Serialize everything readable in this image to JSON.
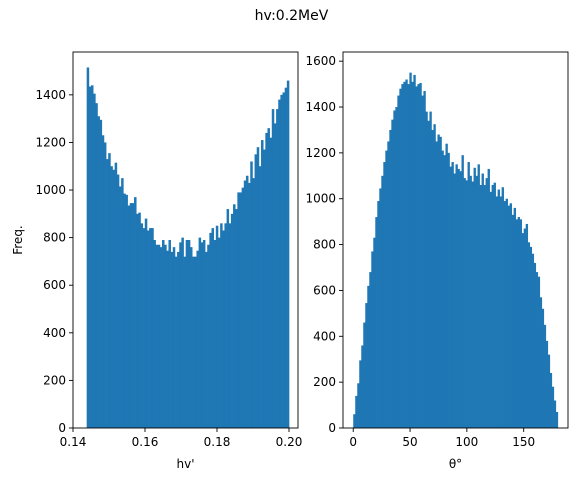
{
  "figure": {
    "title": "hv:0.2MeV"
  },
  "chart_data": [
    {
      "type": "bar",
      "subtype": "histogram",
      "title": "",
      "xlabel": "hv'",
      "ylabel": "Freq.",
      "xlim": [
        0.14,
        0.2025
      ],
      "ylim": [
        0,
        1580
      ],
      "xticks": [
        0.14,
        0.16,
        0.18,
        0.2
      ],
      "xtick_labels": [
        "0.14",
        "0.16",
        "0.18",
        "0.20"
      ],
      "yticks": [
        0,
        200,
        400,
        600,
        800,
        1000,
        1200,
        1400
      ],
      "ytick_labels": [
        "0",
        "200",
        "400",
        "600",
        "800",
        "1000",
        "1200",
        "1400"
      ],
      "bin_start": 0.1438,
      "bin_end": 0.2,
      "color": "#1f77b4",
      "values": [
        1515,
        1435,
        1440,
        1405,
        1365,
        1310,
        1295,
        1230,
        1200,
        1130,
        1155,
        1100,
        1085,
        1115,
        1065,
        1015,
        1050,
        985,
        980,
        935,
        945,
        945,
        970,
        900,
        905,
        860,
        840,
        880,
        830,
        840,
        840,
        790,
        770,
        770,
        760,
        790,
        770,
        745,
        790,
        740,
        760,
        720,
        740,
        780,
        800,
        720,
        790,
        790,
        760,
        720,
        720,
        745,
        800,
        780,
        790,
        740,
        770,
        820,
        840,
        790,
        850,
        800,
        860,
        830,
        860,
        920,
        860,
        900,
        940,
        920,
        990,
        990,
        1010,
        1040,
        1060,
        1030,
        1120,
        1050,
        1150,
        1180,
        1100,
        1210,
        1170,
        1240,
        1260,
        1220,
        1340,
        1280,
        1340,
        1380,
        1400,
        1410,
        1430,
        1460
      ]
    },
    {
      "type": "bar",
      "subtype": "histogram",
      "title": "",
      "xlabel": "θ°",
      "ylabel": "",
      "xlim": [
        -9,
        189
      ],
      "ylim": [
        0,
        1640
      ],
      "xticks": [
        0,
        50,
        100,
        150
      ],
      "xtick_labels": [
        "0",
        "50",
        "100",
        "150"
      ],
      "yticks": [
        0,
        200,
        400,
        600,
        800,
        1000,
        1200,
        1400,
        1600
      ],
      "ytick_labels": [
        "0",
        "200",
        "400",
        "600",
        "800",
        "1000",
        "1200",
        "1400",
        "1600"
      ],
      "bin_start": 0,
      "bin_end": 180,
      "color": "#1f77b4",
      "values": [
        60,
        140,
        195,
        295,
        360,
        460,
        545,
        620,
        680,
        770,
        830,
        920,
        990,
        1045,
        1100,
        1160,
        1210,
        1250,
        1300,
        1345,
        1385,
        1400,
        1450,
        1480,
        1500,
        1510,
        1520,
        1500,
        1550,
        1510,
        1540,
        1490,
        1500,
        1505,
        1450,
        1470,
        1380,
        1340,
        1380,
        1300,
        1325,
        1250,
        1280,
        1270,
        1210,
        1190,
        1240,
        1200,
        1140,
        1160,
        1110,
        1150,
        1130,
        1120,
        1190,
        1090,
        1080,
        1160,
        1100,
        1075,
        1135,
        1100,
        1150,
        1060,
        1110,
        1060,
        1090,
        1130,
        1030,
        1060,
        1070,
        1010,
        1040,
        1010,
        1050,
        990,
        1000,
        970,
        980,
        930,
        960,
        910,
        920,
        910,
        850,
        870,
        890,
        810,
        790,
        760,
        720,
        680,
        660,
        570,
        520,
        450,
        380,
        320,
        240,
        180,
        120,
        70
      ]
    }
  ]
}
